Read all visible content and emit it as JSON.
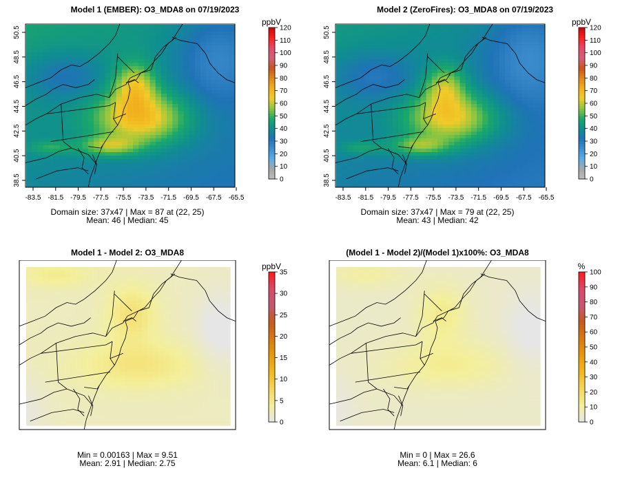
{
  "panels": [
    {
      "title": "Model 1 (EMBER): O3_MDA8 on 07/19/2023",
      "field": "abs1",
      "show_axes": true,
      "x_ticks": [
        "-83.5",
        "-81.5",
        "-79.5",
        "-77.5",
        "-75.5",
        "-73.5",
        "-71.5",
        "-69.5",
        "-67.5",
        "-65.5"
      ],
      "y_ticks": [
        "38.5",
        "40.5",
        "42.5",
        "44.5",
        "46.5",
        "48.5",
        "50.5"
      ],
      "legend": {
        "unit": "ppbV",
        "ticks": [
          "0",
          "10",
          "20",
          "30",
          "40",
          "50",
          "60",
          "70",
          "80",
          "90",
          "100",
          "110",
          "120"
        ],
        "scale": "abs"
      },
      "stats_line1": "Domain size: 37x47 | Max = 87 at (22, 25)",
      "stats_line2": "Mean: 46 |  Median: 45"
    },
    {
      "title": "Model 2 (ZeroFires): O3_MDA8 on 07/19/2023",
      "field": "abs2",
      "show_axes": true,
      "x_ticks": [
        "-83.5",
        "-81.5",
        "-79.5",
        "-77.5",
        "-75.5",
        "-73.5",
        "-71.5",
        "-69.5",
        "-67.5",
        "-65.5"
      ],
      "y_ticks": [
        "38.5",
        "40.5",
        "42.5",
        "44.5",
        "46.5",
        "48.5",
        "50.5"
      ],
      "legend": {
        "unit": "ppbV",
        "ticks": [
          "0",
          "10",
          "20",
          "30",
          "40",
          "50",
          "60",
          "70",
          "80",
          "90",
          "100",
          "110",
          "120"
        ],
        "scale": "abs"
      },
      "stats_line1": "Domain size: 37x47 | Max = 79 at (22, 25)",
      "stats_line2": "Mean: 43 |  Median: 42"
    },
    {
      "title": "Model 1 - Model 2: O3_MDA8",
      "field": "diff",
      "show_axes": false,
      "x_ticks": [],
      "y_ticks": [],
      "legend": {
        "unit": "ppbV",
        "ticks": [
          "0",
          "5",
          "10",
          "15",
          "20",
          "25",
          "30",
          "35"
        ],
        "scale": "diff"
      },
      "stats_line1": "Min = 0.00163 | Max = 9.51",
      "stats_line2": "Mean: 2.91 |  Median: 2.75"
    },
    {
      "title": "(Model 1 - Model 2)/(Model 1)x100%: O3_MDA8",
      "field": "pct",
      "show_axes": false,
      "x_ticks": [],
      "y_ticks": [],
      "legend": {
        "unit": "%",
        "ticks": [
          "0",
          "10",
          "20",
          "30",
          "40",
          "50",
          "60",
          "70",
          "80",
          "90",
          "100"
        ],
        "scale": "pct"
      },
      "stats_line1": "Min = 0 | Max = 26.6",
      "stats_line2": "Mean: 6.1 |  Median: 6"
    }
  ],
  "colors": {
    "abs_scale": [
      "#bdbdbd",
      "#a6a6a6",
      "#5aaee8",
      "#3f8fcf",
      "#1f73b6",
      "#0f8f8f",
      "#1aa86a",
      "#8cc63f",
      "#f1cb2a",
      "#f2b01e",
      "#e0871a",
      "#c9541f",
      "#d2607a",
      "#e24a6a",
      "#ff2020",
      "#c40a0a"
    ],
    "diff_scale": [
      "#e6e6e6",
      "#f3ef9a",
      "#f6d65a",
      "#f2b91c",
      "#e69a0c",
      "#d77a10",
      "#c65a20",
      "#c35872",
      "#d84a6a",
      "#ff1a1a"
    ],
    "pct_scale": [
      "#e6e6e6",
      "#f3ef9a",
      "#f6d65a",
      "#f2b91c",
      "#e69a0c",
      "#d77a10",
      "#c65a20",
      "#c35872",
      "#d84a6a",
      "#ff1a1a"
    ],
    "boundary": "#000000"
  }
}
